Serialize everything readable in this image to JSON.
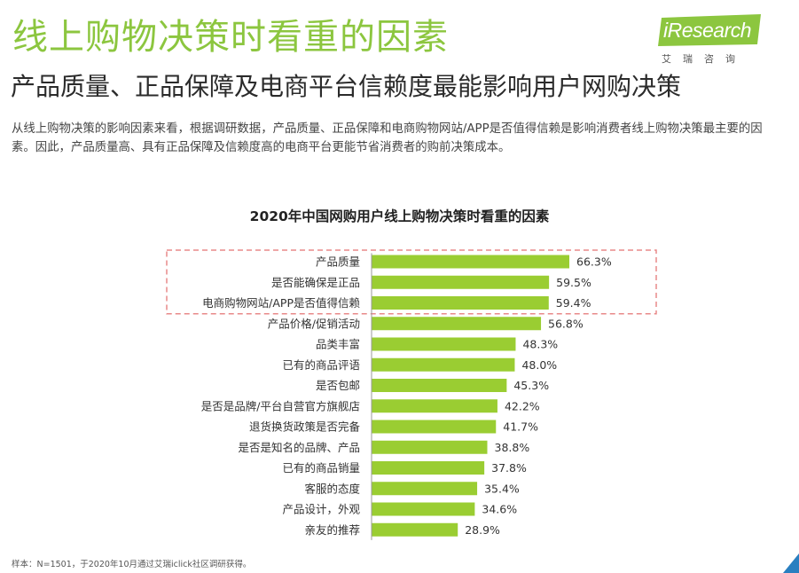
{
  "header": {
    "title": "线上购物决策时看重的因素",
    "subtitle": "产品质量、正品保障及电商平台信赖度最能影响用户网购决策",
    "description": "从线上购物决策的影响因素来看，根据调研数据，产品质量、正品保障和电商购物网站/APP是否值得信赖是影响消费者线上购物决策最主要的因素。因此，产品质量高、具有正品保障及信赖度高的电商平台更能节省消费者的购前决策成本。"
  },
  "logo": {
    "text": "iResearch",
    "cn": "艾瑞咨询"
  },
  "colors": {
    "accent": "#8cc63f",
    "bar": "#9acd32",
    "highlight": "#e88a8a"
  },
  "chart_data": {
    "type": "bar",
    "orientation": "horizontal",
    "title": "2020年中国网购用户线上购物决策时看重的因素",
    "categories": [
      "产品质量",
      "是否能确保是正品",
      "电商购物网站/APP是否值得信赖",
      "产品价格/促销活动",
      "品类丰富",
      "已有的商品评语",
      "是否包邮",
      "是否是品牌/平台自营官方旗舰店",
      "退货换货政策是否完备",
      "是否是知名的品牌、产品",
      "已有的商品销量",
      "客服的态度",
      "产品设计，外观",
      "亲友的推荐"
    ],
    "values": [
      66.3,
      59.5,
      59.4,
      56.8,
      48.3,
      48.0,
      45.3,
      42.2,
      41.7,
      38.8,
      37.8,
      35.4,
      34.6,
      28.9
    ],
    "value_labels": [
      "66.3%",
      "59.5%",
      "59.4%",
      "56.8%",
      "48.3%",
      "48.0%",
      "45.3%",
      "42.2%",
      "41.7%",
      "38.8%",
      "37.8%",
      "35.4%",
      "34.6%",
      "28.9%"
    ],
    "highlighted_categories": [
      "产品质量",
      "是否能确保是正品",
      "电商购物网站/APP是否值得信赖"
    ],
    "unit": "%",
    "grid": false,
    "legend": "none"
  },
  "footer": {
    "source": "样本：N=1501，于2020年10月通过艾瑞iclick社区调研获得。"
  }
}
